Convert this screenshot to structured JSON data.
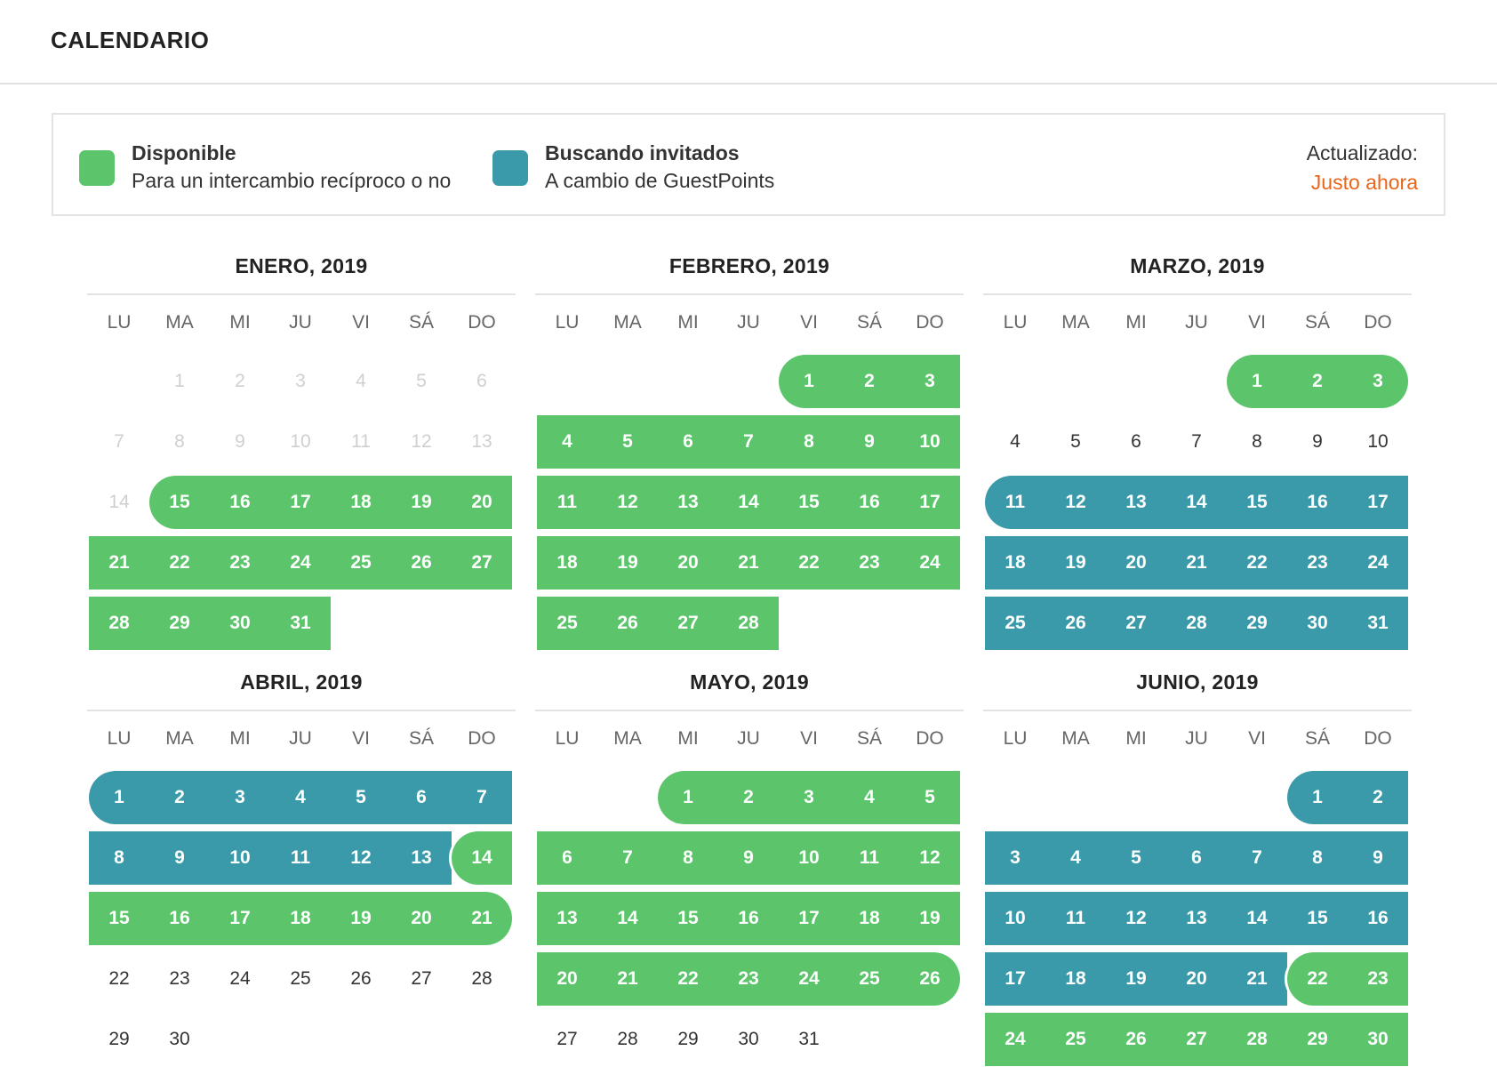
{
  "page": {
    "title": "CALENDARIO"
  },
  "legend": {
    "available": {
      "title": "Disponible",
      "description": "Para un intercambio recíproco o no",
      "color": "#5cc56b"
    },
    "searching": {
      "title": "Buscando invitados",
      "description": "A cambio de GuestPoints",
      "color": "#3a9aaa"
    },
    "updated": {
      "label": "Actualizado:",
      "value": "Justo ahora",
      "value_color": "#e8651c"
    }
  },
  "weekdays": [
    "LU",
    "MA",
    "MI",
    "JU",
    "VI",
    "SÁ",
    "DO"
  ],
  "months": [
    {
      "title": "ENERO, 2019",
      "days": 31,
      "start_weekday": 1,
      "past_through": 14,
      "ranges": [
        {
          "from": 15,
          "to": 31,
          "status": "available"
        }
      ]
    },
    {
      "title": "FEBRERO, 2019",
      "days": 28,
      "start_weekday": 4,
      "ranges": [
        {
          "from": 1,
          "to": 28,
          "status": "available"
        }
      ]
    },
    {
      "title": "MARZO, 2019",
      "days": 31,
      "start_weekday": 4,
      "ranges": [
        {
          "from": 1,
          "to": 3,
          "status": "available"
        },
        {
          "from": 11,
          "to": 31,
          "status": "searching"
        }
      ]
    },
    {
      "title": "ABRIL, 2019",
      "days": 30,
      "start_weekday": 0,
      "ranges": [
        {
          "from": 1,
          "to": 13,
          "status": "searching"
        },
        {
          "from": 14,
          "to": 21,
          "status": "available"
        }
      ]
    },
    {
      "title": "MAYO, 2019",
      "days": 31,
      "start_weekday": 2,
      "ranges": [
        {
          "from": 1,
          "to": 26,
          "status": "available"
        }
      ]
    },
    {
      "title": "JUNIO, 2019",
      "days": 30,
      "start_weekday": 5,
      "ranges": [
        {
          "from": 1,
          "to": 21,
          "status": "searching"
        },
        {
          "from": 22,
          "to": 30,
          "status": "available"
        }
      ]
    }
  ]
}
